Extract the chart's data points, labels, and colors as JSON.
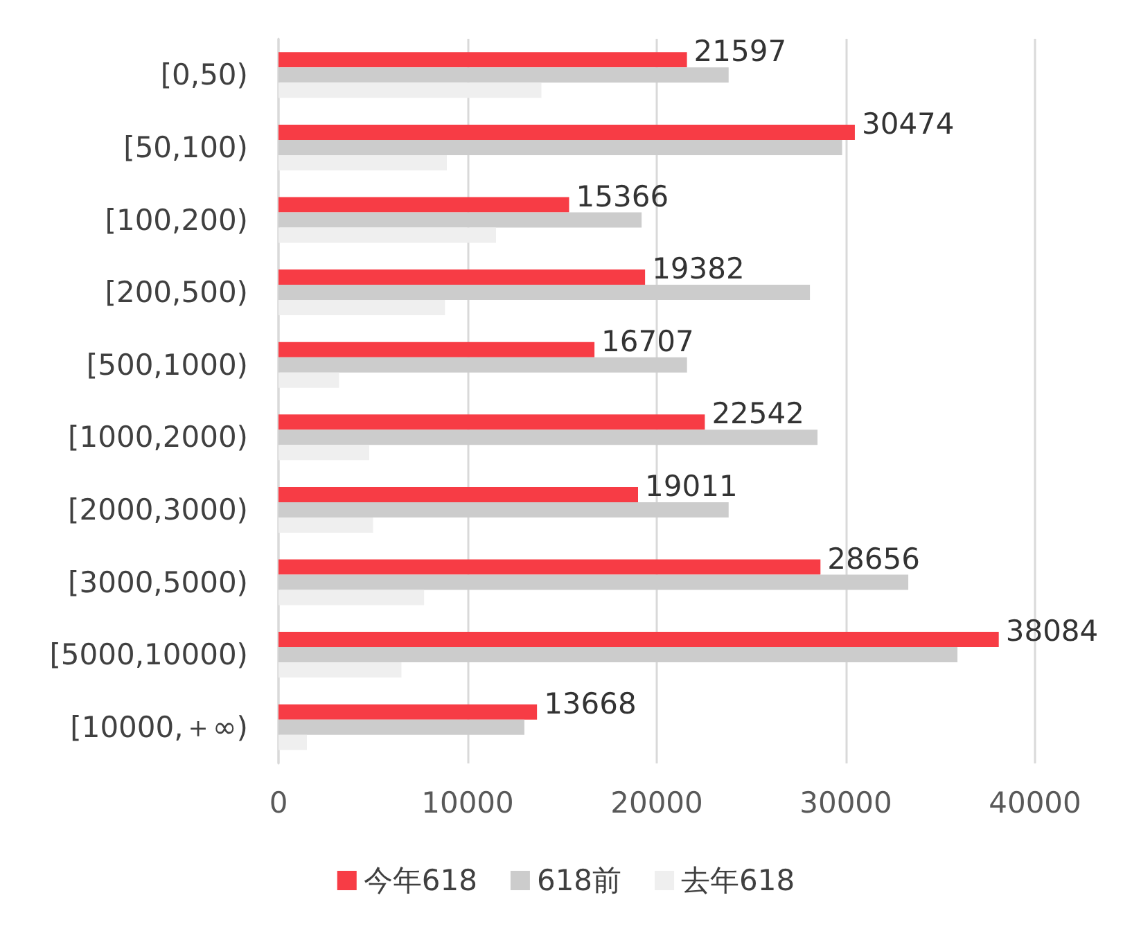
{
  "chart_data": {
    "type": "bar",
    "orientation": "horizontal",
    "categories": [
      "[0,50)",
      "[50,100)",
      "[100,200)",
      "[200,500)",
      "[500,1000)",
      "[1000,2000)",
      "[2000,3000)",
      "[3000,5000)",
      "[5000,10000)",
      "[10000,＋∞)"
    ],
    "series": [
      {
        "name": "今年618",
        "color": "#f73c45",
        "values": [
          21597,
          30474,
          15366,
          19382,
          16707,
          22542,
          19011,
          28656,
          38084,
          13668
        ],
        "value_labels": [
          "21597",
          "30474",
          "15366",
          "19382",
          "16707",
          "22542",
          "19011",
          "28656",
          "38084",
          "13668"
        ]
      },
      {
        "name": "618前",
        "color": "#cccccc",
        "values": [
          23800,
          29800,
          19200,
          28100,
          21600,
          28500,
          23800,
          33300,
          35900,
          13000
        ]
      },
      {
        "name": "去年618",
        "color": "#efefef",
        "values": [
          13900,
          8900,
          11500,
          8800,
          3200,
          4800,
          5000,
          7700,
          6500,
          1500
        ]
      }
    ],
    "xlim": [
      0,
      40000
    ],
    "xticks": [
      0,
      10000,
      20000,
      30000,
      40000
    ],
    "grid": "x",
    "legend": "bottom"
  }
}
